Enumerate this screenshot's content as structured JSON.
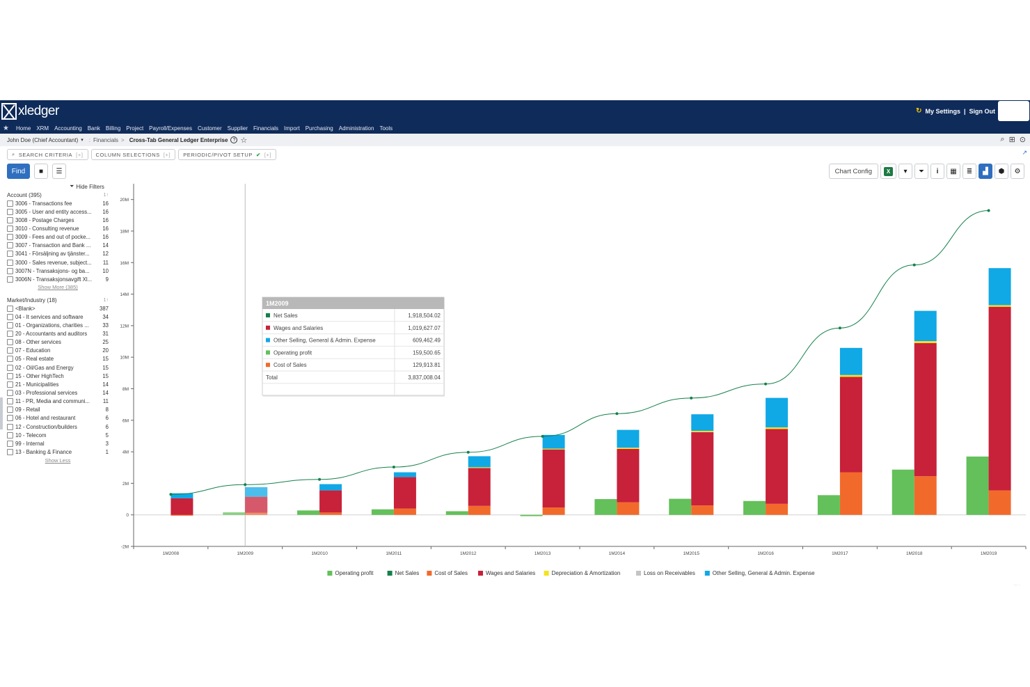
{
  "app": {
    "logo_text": "xledger",
    "my_settings": "My Settings",
    "sign_out": "Sign Out",
    "separator": "|"
  },
  "nav": [
    "Home",
    "XRM",
    "Accounting",
    "Bank",
    "Billing",
    "Project",
    "Payroll/Expenses",
    "Customer",
    "Supplier",
    "Financials",
    "Import",
    "Purchasing",
    "Administration",
    "Tools"
  ],
  "breadcrumb": {
    "user": "John Doe (Chief Accountant)",
    "section": "Financials",
    "sep": ">",
    "current": "Cross-Tab General Ledger Enterprise"
  },
  "tabs": [
    {
      "label": "SEARCH CRITERIA",
      "suffix": "[+]"
    },
    {
      "label": "COLUMN SELECTIONS",
      "suffix": "[+]"
    },
    {
      "label": "PERIODIC/PIVOT SETUP",
      "suffix": "[+]"
    }
  ],
  "toolbar": {
    "find": "Find",
    "chart_config": "Chart Config",
    "excel": "X"
  },
  "filters": {
    "hide_label": "Hide Filters",
    "account": {
      "title": "Account (395)",
      "count_label": "1↑",
      "items": [
        {
          "label": "3006 - Transactions fee",
          "count": "16"
        },
        {
          "label": "3005 - User and entity access...",
          "count": "16"
        },
        {
          "label": "3008 - Postage Charges",
          "count": "16"
        },
        {
          "label": "3010 - Consulting revenue",
          "count": "16"
        },
        {
          "label": "3009 - Fees and out of pocke...",
          "count": "16"
        },
        {
          "label": "3007 - Transaction and Bank ...",
          "count": "14"
        },
        {
          "label": "3041 - Försäljning av tjänster...",
          "count": "12"
        },
        {
          "label": "3000 - Sales revenue, subject...",
          "count": "11"
        },
        {
          "label": "3007N - Transaksjons- og ba...",
          "count": "10"
        },
        {
          "label": "3006N - Transaksjonsavgift Xl...",
          "count": "9"
        }
      ],
      "link": "Show More (385)"
    },
    "market": {
      "title": "Market/Industry (18)",
      "count_label": "1↑",
      "items": [
        {
          "label": "<Blank>",
          "count": "387"
        },
        {
          "label": "04 - It services and software",
          "count": "34"
        },
        {
          "label": "01 - Organizations, charities ...",
          "count": "33"
        },
        {
          "label": "20 - Accountants and auditors",
          "count": "31"
        },
        {
          "label": "08 - Other services",
          "count": "25"
        },
        {
          "label": "07 - Education",
          "count": "20"
        },
        {
          "label": "05 - Real estate",
          "count": "15"
        },
        {
          "label": "02 - Oil/Gas and Energy",
          "count": "15"
        },
        {
          "label": "15 - Other HighTech",
          "count": "15"
        },
        {
          "label": "21 - Municipalities",
          "count": "14"
        },
        {
          "label": "03 - Professional services",
          "count": "14"
        },
        {
          "label": "11 - PR, Media and communi...",
          "count": "11"
        },
        {
          "label": "09 - Retail",
          "count": "8"
        },
        {
          "label": "06 - Hotel and restaurant",
          "count": "6"
        },
        {
          "label": "12 - Construction/builders",
          "count": "6"
        },
        {
          "label": "10 - Telecom",
          "count": "5"
        },
        {
          "label": "99 - Internal",
          "count": "3"
        },
        {
          "label": "13 - Banking & Finance",
          "count": "1"
        }
      ],
      "link": "Show Less"
    }
  },
  "tooltip": {
    "title": "1M2009",
    "rows": [
      {
        "label": "Net Sales",
        "value": "1,918,504.02",
        "color": "#14804a"
      },
      {
        "label": "Wages and Salaries",
        "value": "1,019,627.07",
        "color": "#c8213a"
      },
      {
        "label": "Other Selling, General & Admin. Expense",
        "value": "609,462.49",
        "color": "#11a8e6"
      },
      {
        "label": "Operating profit",
        "value": "159,500.65",
        "color": "#63c05a"
      },
      {
        "label": "Cost of Sales",
        "value": "129,913.81",
        "color": "#f26a2b"
      }
    ],
    "total_label": "Total",
    "total_value": "3,837,008.04"
  },
  "chart_data": {
    "type": "bar",
    "categories": [
      "1M2008",
      "1M2009",
      "1M2010",
      "1M2011",
      "1M2012",
      "1M2013",
      "1M2014",
      "1M2015",
      "1M2016",
      "1M2017",
      "1M2018",
      "1M2019"
    ],
    "ylim": [
      -2000000,
      21000000
    ],
    "yticks": [
      -2000000,
      0,
      2000000,
      4000000,
      6000000,
      8000000,
      10000000,
      12000000,
      14000000,
      16000000,
      18000000,
      20000000
    ],
    "ytick_labels": [
      "-2M",
      "0",
      "2M",
      "4M",
      "6M",
      "8M",
      "10M",
      "12M",
      "14M",
      "16M",
      "18M",
      "20M"
    ],
    "highlight_category": "1M2009",
    "legend_position": "bottom",
    "series": [
      {
        "name": "Operating profit",
        "color": "#63c05a",
        "kind": "bar",
        "stack": "a",
        "values": [
          0,
          159500,
          280000,
          350000,
          230000,
          -80000,
          1000000,
          1020000,
          880000,
          1250000,
          2870000,
          3700000
        ]
      },
      {
        "name": "Net Sales",
        "color": "#14804a",
        "kind": "line",
        "values": [
          1300000,
          1918504,
          2250000,
          3030000,
          3970000,
          4980000,
          6420000,
          7410000,
          8300000,
          11850000,
          15850000,
          19300000
        ]
      },
      {
        "name": "Cost of Sales",
        "color": "#f26a2b",
        "kind": "bar",
        "stack": "b",
        "values": [
          -50000,
          129914,
          150000,
          400000,
          570000,
          470000,
          800000,
          600000,
          700000,
          2700000,
          2450000,
          1550000
        ]
      },
      {
        "name": "Wages and Salaries",
        "color": "#c8213a",
        "kind": "bar",
        "stack": "b",
        "values": [
          1050000,
          1019627,
          1400000,
          2000000,
          2400000,
          3680000,
          3380000,
          4650000,
          4750000,
          6050000,
          8450000,
          11650000
        ]
      },
      {
        "name": "Depreciation & Amortization",
        "color": "#f5e31b",
        "kind": "bar",
        "stack": "b",
        "values": [
          0,
          0,
          0,
          0,
          50000,
          50000,
          80000,
          80000,
          100000,
          120000,
          120000,
          100000
        ]
      },
      {
        "name": "Loss on Receivables",
        "color": "#c4c4c4",
        "kind": "bar",
        "stack": "b",
        "values": [
          0,
          0,
          0,
          0,
          0,
          0,
          0,
          0,
          0,
          0,
          0,
          0
        ]
      },
      {
        "name": "Other Selling, General & Admin. Expense",
        "color": "#11a8e6",
        "kind": "bar",
        "stack": "b",
        "values": [
          320000,
          609462,
          400000,
          300000,
          700000,
          870000,
          1130000,
          1050000,
          1870000,
          1720000,
          1920000,
          2350000
        ]
      }
    ]
  }
}
